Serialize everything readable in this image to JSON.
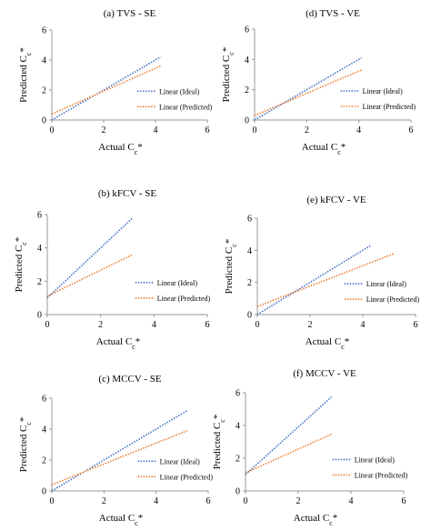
{
  "chart_data": [
    {
      "type": "line",
      "title": "(a) TVS - SE",
      "xlabel": [
        "Actual C",
        "c",
        "*"
      ],
      "ylabel": [
        "Predicted C",
        "c",
        "*"
      ],
      "xlim": [
        0,
        6
      ],
      "ylim": [
        0,
        6
      ],
      "xticks": [
        0,
        2,
        4,
        6
      ],
      "yticks": [
        0,
        2,
        4,
        6
      ],
      "series": [
        {
          "name": "Linear (Ideal)",
          "color": "#4472c4",
          "x": [
            0,
            4.2
          ],
          "values": [
            0,
            4.2
          ]
        },
        {
          "name": "Linear (Predicted)",
          "color": "#ed7d31",
          "x": [
            0,
            4.2
          ],
          "values": [
            0.4,
            3.6
          ]
        }
      ]
    },
    {
      "type": "line",
      "title": "(d) TVS - VE",
      "xlabel": [
        "Actual C",
        "c",
        "*"
      ],
      "ylabel": [
        "Predicted C",
        "c",
        "*"
      ],
      "xlim": [
        0,
        6
      ],
      "ylim": [
        0,
        6
      ],
      "xticks": [
        0,
        2,
        4,
        6
      ],
      "yticks": [
        0,
        2,
        4,
        6
      ],
      "series": [
        {
          "name": "Linear (Ideal)",
          "color": "#4472c4",
          "x": [
            0,
            4.1
          ],
          "values": [
            0,
            4.1
          ]
        },
        {
          "name": "Linear (Predicted)",
          "color": "#ed7d31",
          "x": [
            0,
            4.1
          ],
          "values": [
            0.3,
            3.3
          ]
        }
      ]
    },
    {
      "type": "line",
      "title": "(b) kFCV - SE",
      "xlabel": [
        "Actual C",
        "c",
        "*"
      ],
      "ylabel": [
        "Predicted C",
        "c",
        "*"
      ],
      "xlim": [
        0,
        6
      ],
      "ylim": [
        0,
        6
      ],
      "xticks": [
        0,
        2,
        4,
        6
      ],
      "yticks": [
        0,
        2,
        4,
        6
      ],
      "series": [
        {
          "name": "Linear (Ideal)",
          "color": "#4472c4",
          "x": [
            0,
            3.2
          ],
          "values": [
            1.0,
            5.8
          ]
        },
        {
          "name": "Linear (Predicted)",
          "color": "#ed7d31",
          "x": [
            0,
            3.2
          ],
          "values": [
            1.1,
            3.6
          ]
        }
      ]
    },
    {
      "type": "line",
      "title": "(e) kFCV - VE",
      "xlabel": [
        "Actual C",
        "c",
        "*"
      ],
      "ylabel": [
        "Predicted C",
        "c",
        "*"
      ],
      "xlim": [
        0,
        6
      ],
      "ylim": [
        0,
        6
      ],
      "xticks": [
        0,
        2,
        4,
        6
      ],
      "yticks": [
        0,
        2,
        4,
        6
      ],
      "series": [
        {
          "name": "Linear (Ideal)",
          "color": "#4472c4",
          "x": [
            0,
            4.3
          ],
          "values": [
            0,
            4.3
          ]
        },
        {
          "name": "Linear (Predicted)",
          "color": "#ed7d31",
          "x": [
            0,
            5.2
          ],
          "values": [
            0.5,
            3.8
          ]
        }
      ]
    },
    {
      "type": "line",
      "title": "(c) MCCV - SE",
      "xlabel": [
        "Actual C",
        "c",
        "*"
      ],
      "ylabel": [
        "Predicted C",
        "c",
        "*"
      ],
      "xlim": [
        0,
        6
      ],
      "ylim": [
        0,
        6
      ],
      "xticks": [
        0,
        2,
        4,
        6
      ],
      "yticks": [
        0,
        2,
        4,
        6
      ],
      "series": [
        {
          "name": "Linear (Ideal)",
          "color": "#4472c4",
          "x": [
            0,
            5.2
          ],
          "values": [
            0,
            5.2
          ]
        },
        {
          "name": "Linear (Predicted)",
          "color": "#ed7d31",
          "x": [
            0,
            5.2
          ],
          "values": [
            0.4,
            3.9
          ]
        }
      ]
    },
    {
      "type": "line",
      "title": "(f) MCCV - VE",
      "xlabel": [
        "Actual C",
        "c",
        "*"
      ],
      "ylabel": [
        "Predicted C",
        "c",
        "*"
      ],
      "xlim": [
        0,
        6
      ],
      "ylim": [
        0,
        6
      ],
      "xticks": [
        0,
        2,
        4,
        6
      ],
      "yticks": [
        0,
        2,
        4,
        6
      ],
      "series": [
        {
          "name": "Linear (Ideal)",
          "color": "#4472c4",
          "x": [
            0,
            3.3
          ],
          "values": [
            1.0,
            5.8
          ]
        },
        {
          "name": "Linear (Predicted)",
          "color": "#ed7d31",
          "x": [
            0,
            3.3
          ],
          "values": [
            1.1,
            3.5
          ]
        }
      ]
    }
  ]
}
